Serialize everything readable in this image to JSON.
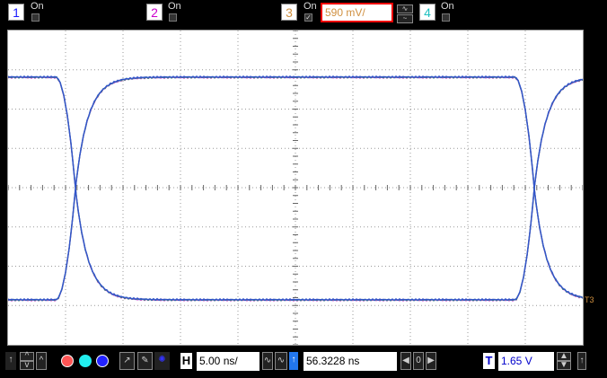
{
  "channels": [
    {
      "num": "1",
      "label": "On",
      "color": "#1a1aff",
      "checked": false
    },
    {
      "num": "2",
      "label": "On",
      "color": "#cc00cc",
      "checked": false
    },
    {
      "num": "3",
      "label": "On",
      "color": "#d09040",
      "checked": true
    },
    {
      "num": "4",
      "label": "On",
      "color": "#20c0c0",
      "checked": false
    }
  ],
  "channel3_scale": "590 mV/",
  "trigger_marker": "T3",
  "bottom": {
    "horizontal_label": "H",
    "horizontal_scale": "5.00 ns/",
    "delay": "56.3228 ns",
    "zoom_value": "0",
    "trigger_label": "T",
    "trigger_level": "1.65 V"
  },
  "colors": {
    "trace": "#3355cc",
    "trace2": "#cc44cc",
    "grid": "#888888",
    "accent": "#e00000"
  }
}
